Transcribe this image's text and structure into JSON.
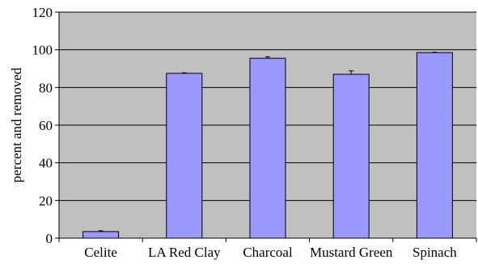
{
  "chart_data": {
    "type": "bar",
    "title": "",
    "xlabel": "",
    "ylabel": "percent and removed",
    "categories": [
      "Celite",
      "LA Red Clay",
      "Charcoal",
      "Mustard Green",
      "Spinach"
    ],
    "values": [
      3.5,
      87.5,
      95.5,
      87.0,
      98.5
    ],
    "errors": [
      0.4,
      0.3,
      0.8,
      1.8,
      0.2
    ],
    "ylim": [
      0,
      120
    ],
    "yticks": [
      0,
      20,
      40,
      60,
      80,
      100,
      120
    ],
    "grid": true,
    "legend": "none",
    "colors": {
      "plot_background": "#c0c0c0",
      "bar_fill": "#9999ff",
      "bar_stroke": "#000000",
      "gridline": "#000000"
    }
  }
}
